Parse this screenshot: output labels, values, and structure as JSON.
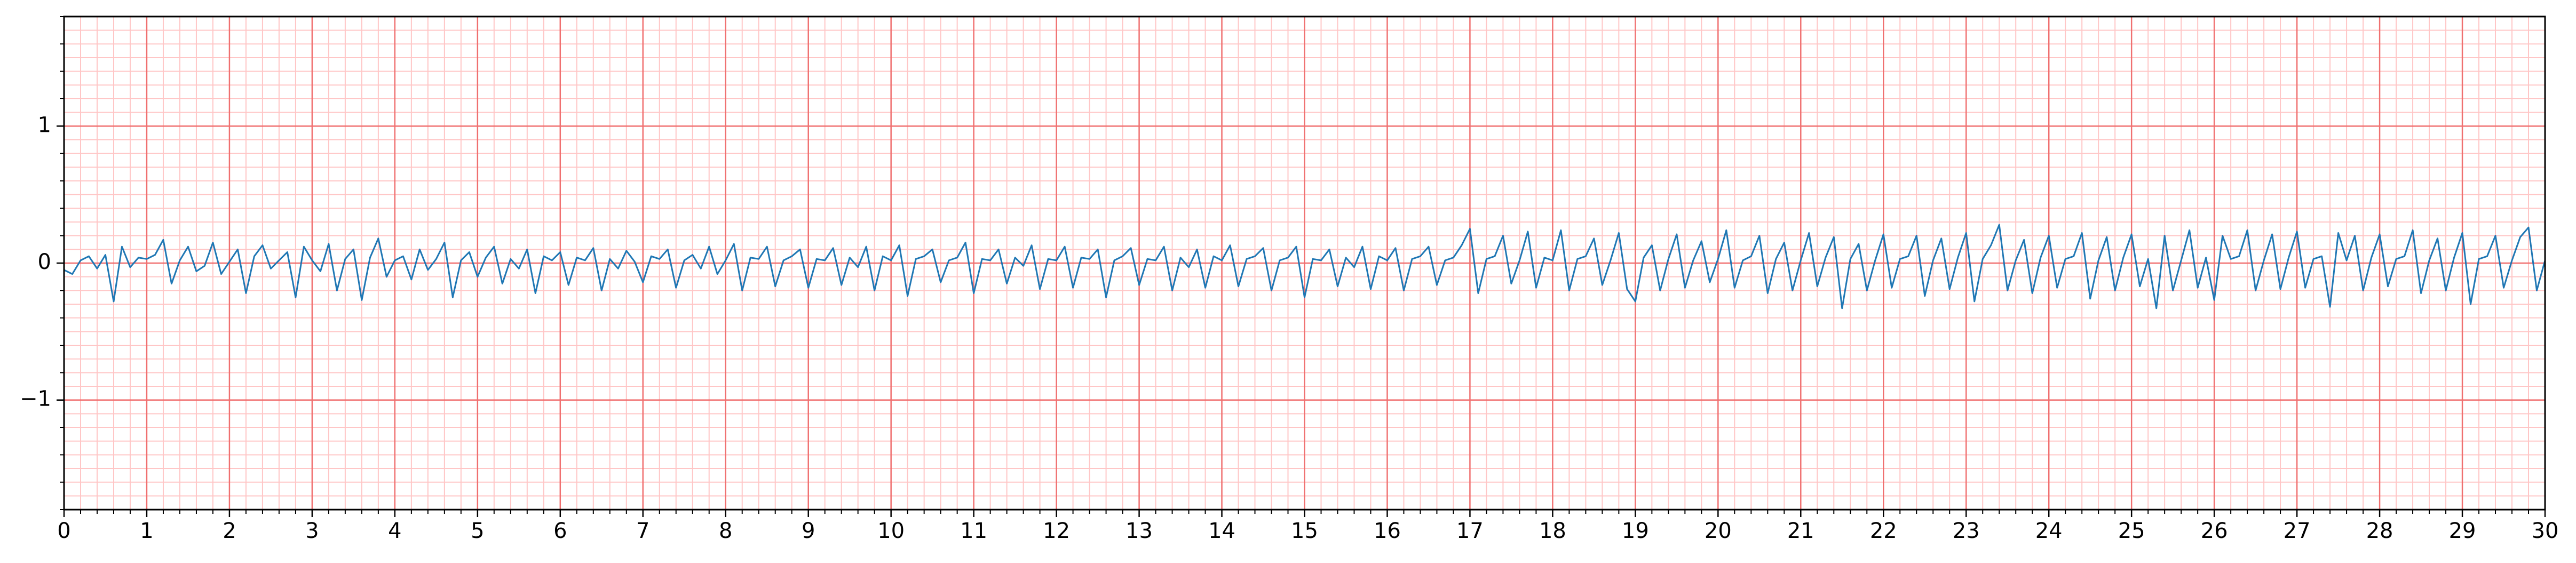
{
  "chart_data": {
    "type": "line",
    "x": [
      0,
      0.1,
      0.2,
      0.3,
      0.4,
      0.5,
      0.6,
      0.7,
      0.8,
      0.9,
      1,
      1.1,
      1.2,
      1.3,
      1.4,
      1.5,
      1.6,
      1.7,
      1.8,
      1.9,
      2,
      2.1,
      2.2,
      2.3,
      2.4,
      2.5,
      2.6,
      2.7,
      2.8,
      2.9,
      3,
      3.1,
      3.2,
      3.3,
      3.4,
      3.5,
      3.6,
      3.7,
      3.8,
      3.9,
      4,
      4.1,
      4.2,
      4.3,
      4.4,
      4.5,
      4.6,
      4.7,
      4.8,
      4.9,
      5,
      5.1,
      5.2,
      5.3,
      5.4,
      5.5,
      5.6,
      5.7,
      5.8,
      5.9,
      6,
      6.1,
      6.2,
      6.3,
      6.4,
      6.5,
      6.6,
      6.7,
      6.8,
      6.9,
      7,
      7.1,
      7.2,
      7.3,
      7.4,
      7.5,
      7.6,
      7.7,
      7.8,
      7.9,
      8,
      8.1,
      8.2,
      8.3,
      8.4,
      8.5,
      8.6,
      8.7,
      8.8,
      8.9,
      9,
      9.1,
      9.2,
      9.3,
      9.4,
      9.5,
      9.6,
      9.7,
      9.8,
      9.9,
      10,
      10.1,
      10.2,
      10.3,
      10.4,
      10.5,
      10.6,
      10.7,
      10.8,
      10.9,
      11,
      11.1,
      11.2,
      11.3,
      11.4,
      11.5,
      11.6,
      11.7,
      11.8,
      11.9,
      12,
      12.1,
      12.2,
      12.3,
      12.4,
      12.5,
      12.6,
      12.7,
      12.8,
      12.9,
      13,
      13.1,
      13.2,
      13.3,
      13.4,
      13.5,
      13.6,
      13.7,
      13.8,
      13.9,
      14,
      14.1,
      14.2,
      14.3,
      14.4,
      14.5,
      14.6,
      14.7,
      14.8,
      14.9,
      15,
      15.1,
      15.2,
      15.3,
      15.4,
      15.5,
      15.6,
      15.7,
      15.8,
      15.9,
      16,
      16.1,
      16.2,
      16.3,
      16.4,
      16.5,
      16.6,
      16.7,
      16.8,
      16.9,
      17,
      17.1,
      17.2,
      17.3,
      17.4,
      17.5,
      17.6,
      17.7,
      17.8,
      17.9,
      18,
      18.1,
      18.2,
      18.3,
      18.4,
      18.5,
      18.6,
      18.7,
      18.8,
      18.9,
      19,
      19.1,
      19.2,
      19.3,
      19.4,
      19.5,
      19.6,
      19.7,
      19.8,
      19.9,
      20,
      20.1,
      20.2,
      20.3,
      20.4,
      20.5,
      20.6,
      20.7,
      20.8,
      20.9,
      21,
      21.1,
      21.2,
      21.3,
      21.4,
      21.5,
      21.6,
      21.7,
      21.8,
      21.9,
      22,
      22.1,
      22.2,
      22.3,
      22.4,
      22.5,
      22.6,
      22.7,
      22.8,
      22.9,
      23,
      23.1,
      23.2,
      23.3,
      23.4,
      23.5,
      23.6,
      23.7,
      23.8,
      23.9,
      24,
      24.1,
      24.2,
      24.3,
      24.4,
      24.5,
      24.6,
      24.7,
      24.8,
      24.9,
      25,
      25.1,
      25.2,
      25.3,
      25.4,
      25.5,
      25.6,
      25.7,
      25.8,
      25.9,
      26,
      26.1,
      26.2,
      26.3,
      26.4,
      26.5,
      26.6,
      26.7,
      26.8,
      26.9,
      27,
      27.1,
      27.2,
      27.3,
      27.4,
      27.5,
      27.6,
      27.7,
      27.8,
      27.9,
      28,
      28.1,
      28.2,
      28.3,
      28.4,
      28.5,
      28.6,
      28.7,
      28.8,
      28.9,
      29,
      29.1,
      29.2,
      29.3,
      29.4,
      29.5,
      29.6,
      29.7,
      29.8,
      29.9,
      30
    ],
    "values": [
      -0.05,
      -0.08,
      0.02,
      0.05,
      -0.04,
      0.06,
      -0.28,
      0.12,
      -0.03,
      0.04,
      0.03,
      0.06,
      0.17,
      -0.15,
      0.02,
      0.12,
      -0.06,
      -0.02,
      0.15,
      -0.08,
      0.01,
      0.1,
      -0.22,
      0.05,
      0.13,
      -0.04,
      0.02,
      0.08,
      -0.25,
      0.12,
      0.02,
      -0.06,
      0.14,
      -0.2,
      0.03,
      0.1,
      -0.27,
      0.04,
      0.18,
      -0.1,
      0.02,
      0.05,
      -0.12,
      0.1,
      -0.05,
      0.03,
      0.15,
      -0.25,
      0.02,
      0.08,
      -0.1,
      0.04,
      0.12,
      -0.15,
      0.03,
      -0.04,
      0.1,
      -0.22,
      0.05,
      0.02,
      0.08,
      -0.16,
      0.04,
      0.02,
      0.11,
      -0.2,
      0.03,
      -0.04,
      0.09,
      0.01,
      -0.14,
      0.05,
      0.03,
      0.1,
      -0.18,
      0.02,
      0.06,
      -0.04,
      0.12,
      -0.08,
      0.02,
      0.14,
      -0.2,
      0.04,
      0.03,
      0.12,
      -0.17,
      0.02,
      0.05,
      0.1,
      -0.18,
      0.03,
      0.02,
      0.11,
      -0.16,
      0.04,
      -0.03,
      0.12,
      -0.2,
      0.05,
      0.02,
      0.13,
      -0.24,
      0.03,
      0.05,
      0.1,
      -0.14,
      0.02,
      0.04,
      0.15,
      -0.22,
      0.03,
      0.02,
      0.1,
      -0.15,
      0.04,
      -0.02,
      0.13,
      -0.19,
      0.03,
      0.02,
      0.12,
      -0.18,
      0.04,
      0.03,
      0.1,
      -0.25,
      0.02,
      0.05,
      0.11,
      -0.16,
      0.03,
      0.02,
      0.12,
      -0.2,
      0.04,
      -0.03,
      0.1,
      -0.18,
      0.05,
      0.02,
      0.13,
      -0.17,
      0.03,
      0.05,
      0.11,
      -0.2,
      0.02,
      0.04,
      0.12,
      -0.25,
      0.03,
      0.02,
      0.1,
      -0.17,
      0.04,
      -0.03,
      0.12,
      -0.19,
      0.05,
      0.02,
      0.11,
      -0.2,
      0.03,
      0.05,
      0.12,
      -0.16,
      0.02,
      0.04,
      0.13,
      0.25,
      -0.22,
      0.03,
      0.05,
      0.2,
      -0.15,
      0.02,
      0.23,
      -0.18,
      0.04,
      0.02,
      0.24,
      -0.2,
      0.03,
      0.05,
      0.18,
      -0.16,
      0.02,
      0.22,
      -0.19,
      -0.28,
      0.04,
      0.13,
      -0.2,
      0.03,
      0.21,
      -0.18,
      0.02,
      0.16,
      -0.14,
      0.03,
      0.24,
      -0.18,
      0.02,
      0.05,
      0.2,
      -0.22,
      0.03,
      0.15,
      -0.2,
      0.02,
      0.22,
      -0.17,
      0.04,
      0.19,
      -0.33,
      0.03,
      0.14,
      -0.2,
      0.02,
      0.21,
      -0.18,
      0.03,
      0.05,
      0.2,
      -0.24,
      0.02,
      0.18,
      -0.19,
      0.04,
      0.22,
      -0.28,
      0.03,
      0.13,
      0.28,
      -0.2,
      0.02,
      0.17,
      -0.22,
      0.04,
      0.2,
      -0.18,
      0.03,
      0.05,
      0.22,
      -0.26,
      0.02,
      0.19,
      -0.2,
      0.04,
      0.21,
      -0.17,
      0.03,
      -0.33,
      0.2,
      -0.2,
      0.02,
      0.24,
      -0.18,
      0.04,
      -0.27,
      0.2,
      0.03,
      0.05,
      0.24,
      -0.2,
      0.02,
      0.21,
      -0.19,
      0.04,
      0.23,
      -0.18,
      0.03,
      0.05,
      -0.32,
      0.22,
      0.02,
      0.2,
      -0.2,
      0.04,
      0.21,
      -0.17,
      0.03,
      0.05,
      0.24,
      -0.22,
      0.02,
      0.18,
      -0.2,
      0.04,
      0.22,
      -0.3,
      0.03,
      0.05,
      0.2,
      -0.18,
      0.02,
      0.19,
      0.26,
      -0.2,
      0.02
    ],
    "color": "#1f77b4",
    "xlim": [
      0,
      30
    ],
    "ylim": [
      -1.8,
      1.8
    ],
    "xticks": [
      0,
      1,
      2,
      3,
      4,
      5,
      6,
      7,
      8,
      9,
      10,
      11,
      12,
      13,
      14,
      15,
      16,
      17,
      18,
      19,
      20,
      21,
      22,
      23,
      24,
      25,
      26,
      27,
      28,
      29,
      30
    ],
    "yticks": [
      {
        "value": -1,
        "label": "−1"
      },
      0,
      1
    ],
    "grid": true
  }
}
